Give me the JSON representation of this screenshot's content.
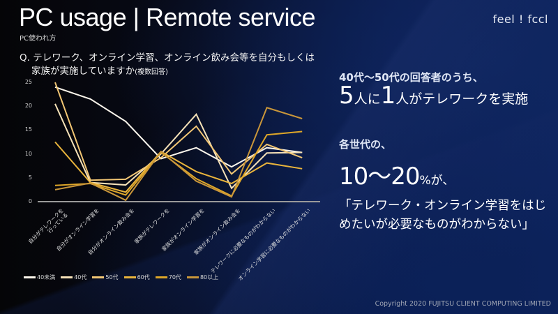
{
  "header": {
    "title": "PC usage | Remote service",
    "subtitle": "PC使われ方",
    "logo": "feel ! fccl"
  },
  "question": {
    "line1": "Q. テレワーク、オンライン学習、オンライン飲み会等を自分もしくは",
    "line2": "家族が実施していますか",
    "note": "(複数回答)"
  },
  "highlights": {
    "h1": "40代～50代の回答者のうち、",
    "h2_num1": "5",
    "h2_mid": "人に",
    "h2_num2": "1",
    "h2_rest": "人がテレワークを実施",
    "h3": "各世代の、",
    "h4_num": "10～20",
    "h4_rest": "%が、",
    "h5": "「テレワーク・オンライン学習をはじめたいが必要なものがわからない」"
  },
  "footer": {
    "copyright": "Copyright 2020 FUJITSU CLIENT COMPUTING LIMITED"
  },
  "chart_data": {
    "type": "line",
    "title": "",
    "xlabel": "",
    "ylabel": "",
    "ylim": [
      0,
      25
    ],
    "yticks": [
      0,
      5,
      10,
      15,
      20,
      25
    ],
    "grid": false,
    "legend_position": "bottom",
    "categories": [
      "自分がテレワークを行っている",
      "自分がオンライン学習を",
      "自分がオンライン飲み会を",
      "家族がテレワークを",
      "家族がオンライン学習を",
      "家族がオンライン飲み会を",
      "テレワークに必要なものがわからない",
      "オンライン学習に必要なものがわからない"
    ],
    "series": [
      {
        "name": "40未満",
        "color": "#fbf6ec",
        "values": [
          24.0,
          21.5,
          16.8,
          9.0,
          11.3,
          7.3,
          11.3,
          10.3
        ]
      },
      {
        "name": "40代",
        "color": "#f6e2b8",
        "values": [
          20.5,
          4.0,
          3.5,
          10.0,
          18.3,
          2.8,
          10.2,
          10.3
        ]
      },
      {
        "name": "50代",
        "color": "#f2c674",
        "values": [
          25.0,
          4.5,
          4.7,
          9.2,
          15.8,
          5.8,
          12.0,
          9.2
        ]
      },
      {
        "name": "60代",
        "color": "#e9b43c",
        "values": [
          12.5,
          4.0,
          2.0,
          10.5,
          6.3,
          3.8,
          8.1,
          6.9
        ]
      },
      {
        "name": "70代",
        "color": "#dea628",
        "values": [
          3.4,
          3.8,
          1.4,
          10.3,
          4.8,
          1.2,
          14.0,
          14.7
        ]
      },
      {
        "name": "80以上",
        "color": "#c9963a",
        "values": [
          2.5,
          3.9,
          0.3,
          10.5,
          4.3,
          1.0,
          19.7,
          17.4
        ]
      }
    ]
  }
}
